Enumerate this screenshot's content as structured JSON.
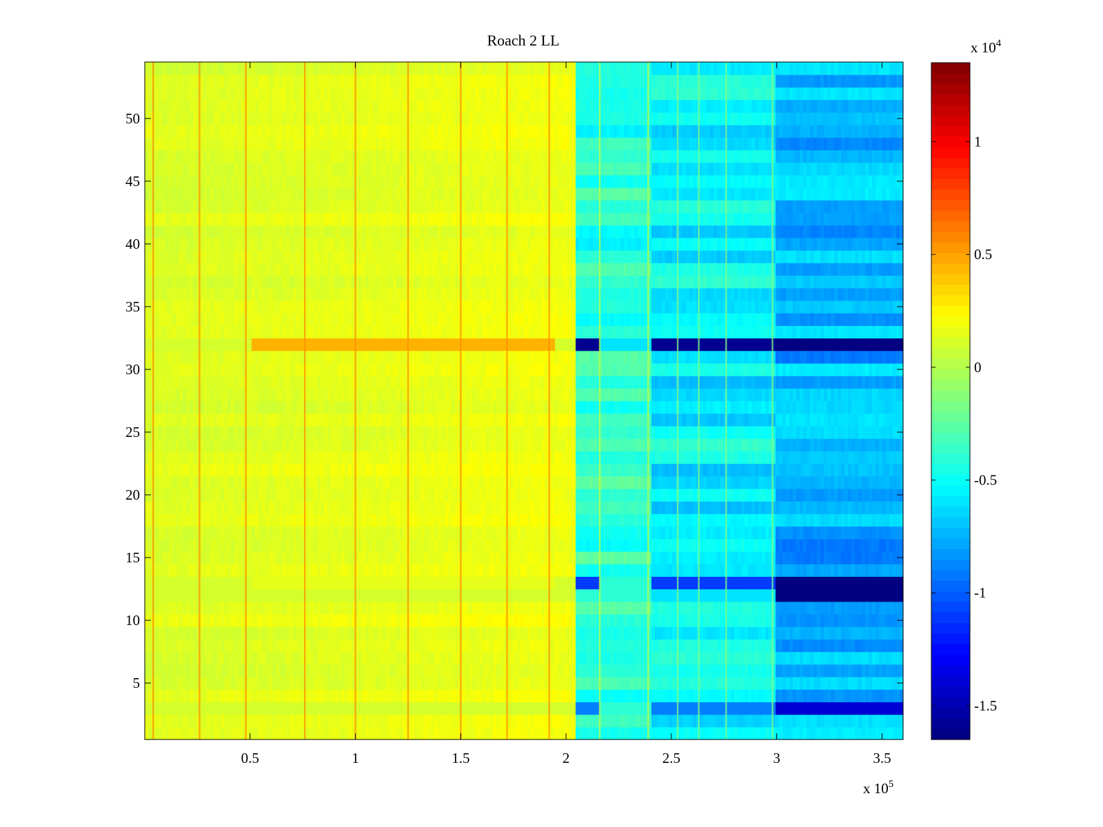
{
  "chart_data": {
    "type": "heatmap",
    "title": "Roach 2 LL",
    "xlabel": "",
    "ylabel": "",
    "xlim": [
      0,
      3.6
    ],
    "ylim": [
      0.5,
      54.5
    ],
    "x_multiplier": "x 10",
    "x_multiplier_exp": "5",
    "x_ticks": [
      0.5,
      1,
      1.5,
      2,
      2.5,
      3,
      3.5
    ],
    "x_tick_labels": [
      "0.5",
      "1",
      "1.5",
      "2",
      "2.5",
      "3",
      "3.5"
    ],
    "y_ticks": [
      5,
      10,
      15,
      20,
      25,
      30,
      35,
      40,
      45,
      50
    ],
    "y_tick_labels": [
      "5",
      "10",
      "15",
      "20",
      "25",
      "30",
      "35",
      "40",
      "45",
      "50"
    ],
    "rows": 54,
    "colorbar": {
      "colormap": "jet",
      "clim": [
        -1.65,
        1.35
      ],
      "ticks": [
        1,
        0.5,
        0,
        -0.5,
        -1,
        -1.5
      ],
      "tick_labels": [
        "1",
        "0.5",
        "0",
        "-0.5",
        "-1",
        "-1.5"
      ],
      "multiplier": "x 10",
      "multiplier_exp": "4"
    },
    "regions": [
      {
        "x_start": 0,
        "x_end": 2.05,
        "base_value": 0.12,
        "description_value": "near 0 to +0.2"
      },
      {
        "x_start": 2.05,
        "x_end": 2.4,
        "base_value": -0.4,
        "description_value": "about -0.4"
      },
      {
        "x_start": 2.4,
        "x_end": 3.0,
        "base_value": -0.55,
        "description_value": "about -0.55"
      },
      {
        "x_start": 3.0,
        "x_end": 3.6,
        "base_value": -0.75,
        "description_value": "about -0.75"
      }
    ],
    "stripe_columns": [
      0.04,
      0.26,
      0.48,
      0.76,
      1.0,
      1.25,
      1.5,
      1.72,
      1.92,
      2.16,
      2.39,
      2.53,
      2.63,
      2.76,
      2.98
    ],
    "special_rows": [
      {
        "row": 32,
        "values": [
          0.1,
          0.45,
          -1.6,
          -0.6,
          -1.6,
          -1.65
        ]
      },
      {
        "row": 13,
        "values": [
          0.1,
          0.15,
          -1.1,
          -0.4,
          -1.1,
          -1.65
        ]
      },
      {
        "row": 12,
        "values": [
          0.1,
          0.1,
          -0.4,
          -0.4,
          -0.6,
          -1.65
        ]
      },
      {
        "row": 3,
        "values": [
          0.1,
          0.1,
          -0.9,
          -0.4,
          -0.9,
          -1.4
        ]
      }
    ]
  }
}
